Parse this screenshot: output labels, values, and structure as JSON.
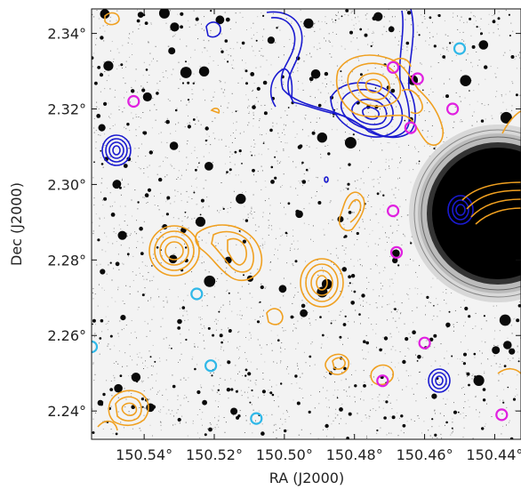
{
  "chart_data": {
    "type": "scatter",
    "xlabel": "RA (J2000)",
    "ylabel": "Dec (J2000)",
    "x_ticks": [
      "150.54°",
      "150.52°",
      "150.50°",
      "150.48°",
      "150.46°",
      "150.44°"
    ],
    "y_ticks": [
      "2.34°",
      "2.32°",
      "2.30°",
      "2.28°",
      "2.26°",
      "2.24°"
    ],
    "x_axis_direction": "decreasing-right",
    "background": "inverted greyscale optical image",
    "colors": {
      "orange_contours": "#f0a020",
      "blue_contours": "#1a1ad0",
      "magenta_markers": "#e020e0",
      "cyan_markers": "#30b8e8"
    },
    "magenta_markers": [
      {
        "ra": 150.543,
        "dec": 2.322
      },
      {
        "ra": 150.469,
        "dec": 2.331
      },
      {
        "ra": 150.462,
        "dec": 2.328
      },
      {
        "ra": 150.452,
        "dec": 2.32
      },
      {
        "ra": 150.464,
        "dec": 2.315
      },
      {
        "ra": 150.469,
        "dec": 2.293
      },
      {
        "ra": 150.468,
        "dec": 2.282
      },
      {
        "ra": 150.46,
        "dec": 2.258
      },
      {
        "ra": 150.472,
        "dec": 2.248
      },
      {
        "ra": 150.43,
        "dec": 2.249
      },
      {
        "ra": 150.438,
        "dec": 2.239
      }
    ],
    "cyan_markers": [
      {
        "ra": 150.45,
        "dec": 2.336
      },
      {
        "ra": 150.525,
        "dec": 2.271
      },
      {
        "ra": 150.521,
        "dec": 2.252
      },
      {
        "ra": 150.508,
        "dec": 2.238
      },
      {
        "ra": 150.555,
        "dec": 2.257
      }
    ]
  }
}
